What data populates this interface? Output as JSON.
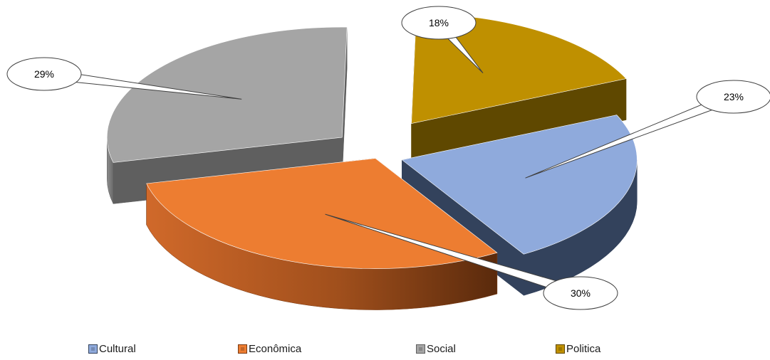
{
  "chart_data": {
    "type": "pie",
    "style": "exploded-3d",
    "title": "",
    "slices": [
      {
        "label": "Cultural",
        "value": 23,
        "display": "23%",
        "color": "#8faadc",
        "side_color": "#33425c"
      },
      {
        "label": "Econômica",
        "value": 30,
        "display": "30%",
        "color": "#ed7d31",
        "side_color": "#7a3a12"
      },
      {
        "label": "Social",
        "value": 29,
        "display": "29%",
        "color": "#a5a5a5",
        "side_color": "#5f5f5f"
      },
      {
        "label": "Politica",
        "value": 18,
        "display": "18%",
        "color": "#bf9000",
        "side_color": "#5f4800"
      }
    ],
    "legend_placement": "bottom"
  }
}
